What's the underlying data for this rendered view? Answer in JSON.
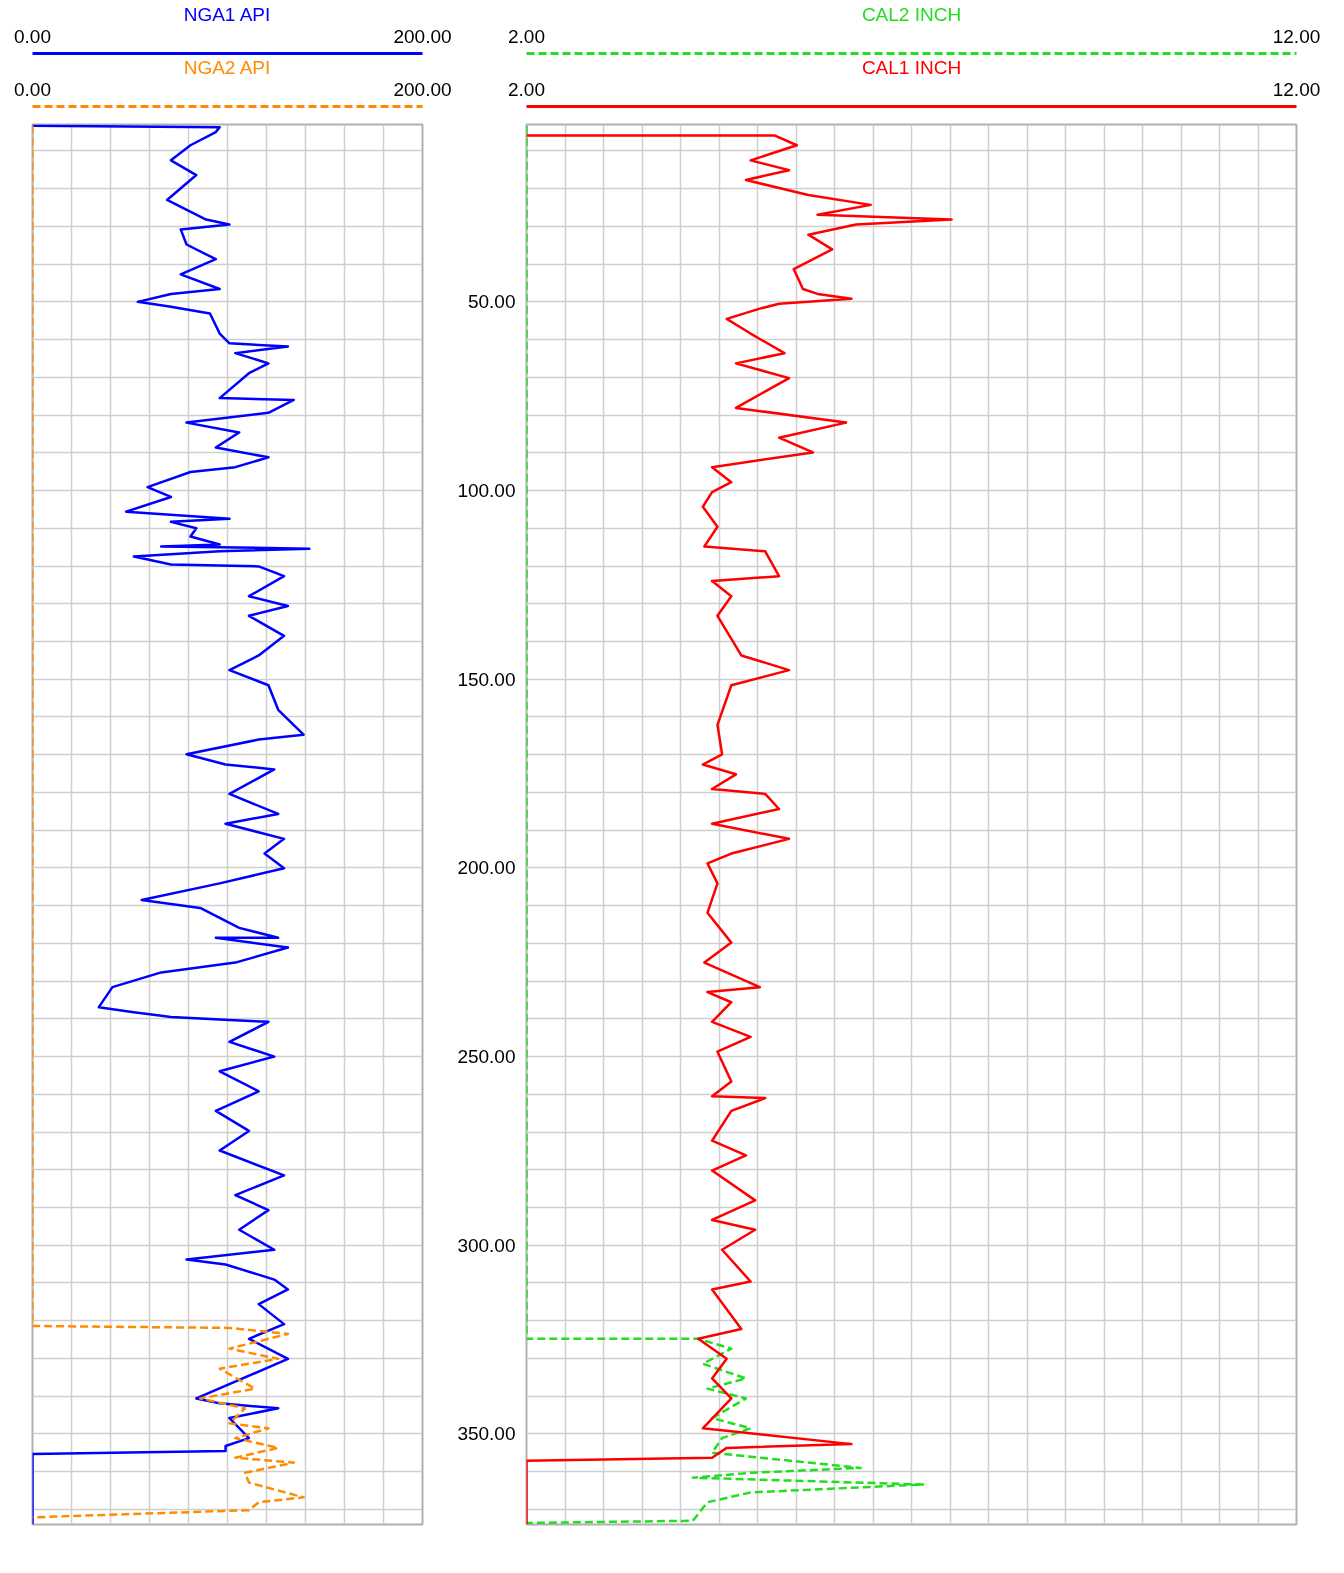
{
  "chart_data": [
    {
      "type": "line",
      "tick_labels": "x",
      "grid": true,
      "xlim": [
        0,
        200
      ],
      "x2lim": [
        0,
        200
      ],
      "ylim": [
        374,
        3
      ],
      "xticks": [
        {
          "value": 0,
          "label": "0.00"
        },
        {
          "value": 20,
          "label": null
        },
        {
          "value": 40,
          "label": null
        },
        {
          "value": 60,
          "label": null
        },
        {
          "value": 80,
          "label": null
        },
        {
          "value": 100,
          "label": null
        },
        {
          "value": 120,
          "label": null
        },
        {
          "value": 140,
          "label": null
        },
        {
          "value": 160,
          "label": null
        },
        {
          "value": 180,
          "label": null
        },
        {
          "value": 200,
          "label": "200.00"
        }
      ],
      "x2ticks": [
        {
          "value": 0,
          "label": "0.00"
        },
        {
          "value": 200,
          "label": "200.00"
        }
      ],
      "yticks": [
        {
          "value": 10,
          "label": null
        },
        {
          "value": 20,
          "label": null
        },
        {
          "value": 30,
          "label": null
        },
        {
          "value": 40,
          "label": null
        },
        {
          "value": 50,
          "label": null
        },
        {
          "value": 60,
          "label": null
        },
        {
          "value": 70,
          "label": null
        },
        {
          "value": 80,
          "label": null
        },
        {
          "value": 90,
          "label": null
        },
        {
          "value": 100,
          "label": null
        },
        {
          "value": 110,
          "label": null
        },
        {
          "value": 120,
          "label": null
        },
        {
          "value": 130,
          "label": null
        },
        {
          "value": 140,
          "label": null
        },
        {
          "value": 150,
          "label": null
        },
        {
          "value": 160,
          "label": null
        },
        {
          "value": 170,
          "label": null
        },
        {
          "value": 180,
          "label": null
        },
        {
          "value": 190,
          "label": null
        },
        {
          "value": 200,
          "label": null
        },
        {
          "value": 210,
          "label": null
        },
        {
          "value": 220,
          "label": null
        },
        {
          "value": 230,
          "label": null
        },
        {
          "value": 240,
          "label": null
        },
        {
          "value": 250,
          "label": null
        },
        {
          "value": 260,
          "label": null
        },
        {
          "value": 270,
          "label": null
        },
        {
          "value": 280,
          "label": null
        },
        {
          "value": 290,
          "label": null
        },
        {
          "value": 300,
          "label": null
        },
        {
          "value": 310,
          "label": null
        },
        {
          "value": 320,
          "label": null
        },
        {
          "value": 330,
          "label": null
        },
        {
          "value": 340,
          "label": null
        },
        {
          "value": 350,
          "label": null
        },
        {
          "value": 360,
          "label": null
        },
        {
          "value": 370,
          "label": null
        }
      ],
      "series": [
        {
          "name": "NGA1 API",
          "color": "#0000ff",
          "axis": "x2",
          "line_style": "solid",
          "x": [
            0,
            96,
            94,
            81,
            71,
            84,
            69,
            89,
            101,
            76,
            79,
            94,
            76,
            96,
            71,
            54,
            71,
            91,
            96,
            101,
            131,
            104,
            121,
            111,
            96,
            134,
            121,
            79,
            106,
            94,
            121,
            104,
            81,
            59,
            71,
            48,
            101,
            71,
            84,
            81,
            96,
            66,
            142,
            96,
            52,
            71,
            116,
            129,
            111,
            131,
            111,
            129,
            116,
            101,
            121,
            126,
            139,
            116,
            79,
            99,
            124,
            101,
            126,
            99,
            129,
            119,
            129,
            96,
            56,
            86,
            106,
            126,
            94,
            131,
            104,
            66,
            41,
            34,
            51,
            71,
            101,
            121,
            101,
            124,
            96,
            116,
            94,
            111,
            96,
            129,
            104,
            121,
            106,
            124,
            79,
            99,
            124,
            131,
            116,
            129,
            111,
            131,
            84,
            96,
            126,
            101,
            111,
            99,
            99,
            0,
            0
          ],
          "values": [
            3.3,
            3.7,
            5,
            8.5,
            12.5,
            16.4,
            23,
            28.2,
            29.5,
            30.8,
            34.8,
            38.7,
            42.7,
            46.6,
            47.9,
            50,
            51.3,
            53.1,
            58.4,
            61,
            61.8,
            63.6,
            66.3,
            68.9,
            75.5,
            76,
            79.4,
            82,
            84.6,
            88.6,
            91.2,
            93.8,
            95.1,
            99.1,
            101.7,
            105.6,
            107.5,
            108.3,
            110,
            112.2,
            114.3,
            114.8,
            115.4,
            116.1,
            117.5,
            119.6,
            120.1,
            122.7,
            128,
            130.6,
            133.2,
            138.5,
            143.7,
            147.6,
            151.6,
            158.1,
            164.7,
            166,
            169.9,
            172.6,
            173.9,
            180.4,
            185.7,
            188.3,
            192.3,
            196.2,
            200.1,
            204.1,
            208.5,
            210.6,
            215.9,
            218.5,
            218.5,
            221.1,
            225.1,
            227.7,
            231.6,
            236.9,
            238.2,
            239.5,
            240.3,
            240.8,
            246.1,
            250,
            253.9,
            259.2,
            264.4,
            269.7,
            274.9,
            281.5,
            286.7,
            290.7,
            295.9,
            301.2,
            303.8,
            305.1,
            309.1,
            311.7,
            315.6,
            320.9,
            324.8,
            330.1,
            340.6,
            341.9,
            343.2,
            345.8,
            351.1,
            353.2,
            354.5,
            355.3,
            374
          ]
        },
        {
          "name": "NGA2 API",
          "color": "#ff8c00",
          "line_style": "dashed",
          "x": [
            0,
            0,
            101,
            131,
            101,
            126,
            96,
            114,
            86,
            109,
            101,
            121,
            104,
            126,
            104,
            134,
            109,
            111,
            139,
            116,
            111,
            0
          ],
          "values": [
            3.3,
            321.4,
            321.9,
            323.5,
            327.4,
            330.1,
            332.7,
            338,
            340.6,
            343.2,
            347.2,
            348.5,
            351.1,
            353.7,
            356.3,
            357.6,
            360.3,
            362.9,
            366.8,
            368.1,
            370.2,
            372.1
          ]
        }
      ]
    },
    {
      "type": "line",
      "grid": true,
      "xlim": [
        2,
        12
      ],
      "x2lim": [
        2,
        12
      ],
      "ylim": [
        374,
        3
      ],
      "xticks": [
        {
          "value": 2,
          "label": "2.00"
        },
        {
          "value": 2.5,
          "label": null
        },
        {
          "value": 3,
          "label": null
        },
        {
          "value": 3.5,
          "label": null
        },
        {
          "value": 4,
          "label": null
        },
        {
          "value": 4.5,
          "label": null
        },
        {
          "value": 5,
          "label": null
        },
        {
          "value": 5.5,
          "label": null
        },
        {
          "value": 6,
          "label": null
        },
        {
          "value": 6.5,
          "label": null
        },
        {
          "value": 7,
          "label": null
        },
        {
          "value": 7.5,
          "label": null
        },
        {
          "value": 8,
          "label": null
        },
        {
          "value": 8.5,
          "label": null
        },
        {
          "value": 9,
          "label": null
        },
        {
          "value": 9.5,
          "label": null
        },
        {
          "value": 10,
          "label": null
        },
        {
          "value": 10.5,
          "label": null
        },
        {
          "value": 11,
          "label": null
        },
        {
          "value": 11.5,
          "label": null
        },
        {
          "value": 12,
          "label": "12.00"
        }
      ],
      "x2ticks": [
        {
          "value": 2,
          "label": "2.00"
        },
        {
          "value": 12,
          "label": "12.00"
        }
      ],
      "yticks": [
        {
          "value": 10,
          "label": null
        },
        {
          "value": 20,
          "label": null
        },
        {
          "value": 30,
          "label": null
        },
        {
          "value": 40,
          "label": null
        },
        {
          "value": 50,
          "label": "50.00"
        },
        {
          "value": 60,
          "label": null
        },
        {
          "value": 70,
          "label": null
        },
        {
          "value": 80,
          "label": null
        },
        {
          "value": 90,
          "label": null
        },
        {
          "value": 100,
          "label": "100.00"
        },
        {
          "value": 110,
          "label": null
        },
        {
          "value": 120,
          "label": null
        },
        {
          "value": 130,
          "label": null
        },
        {
          "value": 140,
          "label": null
        },
        {
          "value": 150,
          "label": "150.00"
        },
        {
          "value": 160,
          "label": null
        },
        {
          "value": 170,
          "label": null
        },
        {
          "value": 180,
          "label": null
        },
        {
          "value": 190,
          "label": null
        },
        {
          "value": 200,
          "label": "200.00"
        },
        {
          "value": 210,
          "label": null
        },
        {
          "value": 220,
          "label": null
        },
        {
          "value": 230,
          "label": null
        },
        {
          "value": 240,
          "label": null
        },
        {
          "value": 250,
          "label": "250.00"
        },
        {
          "value": 260,
          "label": null
        },
        {
          "value": 270,
          "label": null
        },
        {
          "value": 280,
          "label": null
        },
        {
          "value": 290,
          "label": null
        },
        {
          "value": 300,
          "label": "300.00"
        },
        {
          "value": 310,
          "label": null
        },
        {
          "value": 320,
          "label": null
        },
        {
          "value": 330,
          "label": null
        },
        {
          "value": 340,
          "label": null
        },
        {
          "value": 350,
          "label": "350.00"
        },
        {
          "value": 360,
          "label": null
        },
        {
          "value": 370,
          "label": null
        }
      ],
      "series": [
        {
          "name": "CAL2 INCH",
          "color": "#22dd22",
          "axis": "x2",
          "line_style": "dashed",
          "x": [
            2,
            2,
            4.23,
            4.66,
            4.29,
            4.85,
            4.35,
            4.85,
            4.41,
            4.91,
            4.54,
            4.41,
            6.34,
            4.91,
            4.16,
            7.15,
            4.91,
            4.35,
            4.16,
            2
          ],
          "values": [
            3.3,
            324.8,
            324.8,
            327.4,
            331.4,
            335.3,
            338,
            340.6,
            345.8,
            348.5,
            351.1,
            355,
            359,
            360.3,
            361.6,
            363.4,
            365.5,
            368.1,
            373,
            373.6
          ]
        },
        {
          "name": "CAL1 INCH",
          "color": "#ff0000",
          "line_style": "solid",
          "x": [
            2,
            5.22,
            5.51,
            4.91,
            5.41,
            4.85,
            5.66,
            6.47,
            5.78,
            7.52,
            6.28,
            5.66,
            5.97,
            5.47,
            5.59,
            5.78,
            6.22,
            5.28,
            5.03,
            4.6,
            4.91,
            5.35,
            4.72,
            5.41,
            4.72,
            6.15,
            5.28,
            5.72,
            4.41,
            4.66,
            4.41,
            4.29,
            4.48,
            4.31,
            5.1,
            5.28,
            4.41,
            4.66,
            4.48,
            4.79,
            5.41,
            4.66,
            4.48,
            4.54,
            4.29,
            4.72,
            4.41,
            5.1,
            5.28,
            4.41,
            5.41,
            4.66,
            4.35,
            4.48,
            4.35,
            4.66,
            4.31,
            5.03,
            4.35,
            4.66,
            4.41,
            4.91,
            4.48,
            4.66,
            4.41,
            5.1,
            4.66,
            4.41,
            4.85,
            4.41,
            4.97,
            4.41,
            4.97,
            4.54,
            4.91,
            4.41,
            4.79,
            4.23,
            4.6,
            4.41,
            4.66,
            4.29,
            6.22,
            4.6,
            4.41,
            2,
            2
          ],
          "values": [
            5.9,
            5.9,
            8.5,
            12.5,
            15.1,
            17.7,
            21.7,
            24.3,
            26.9,
            28.2,
            29.5,
            32.2,
            36.1,
            41.3,
            46.6,
            47.9,
            49.2,
            50.5,
            51.8,
            54.5,
            58.4,
            63.6,
            66.3,
            70.2,
            78.1,
            82,
            86,
            89.9,
            93.8,
            97.8,
            100.4,
            104.3,
            109.6,
            114.8,
            116.1,
            122.7,
            124,
            128,
            133.2,
            143.7,
            147.6,
            151.6,
            162.1,
            169.9,
            172.6,
            175.2,
            179.1,
            180.4,
            184.4,
            188.3,
            192.3,
            196.2,
            198.8,
            204.1,
            211.9,
            219.8,
            225.1,
            231.6,
            232.9,
            235.6,
            240.8,
            244.8,
            248.7,
            256.6,
            260.5,
            261,
            264.4,
            272.3,
            276.2,
            280.2,
            288.1,
            293.3,
            295.9,
            301.2,
            309.6,
            311.7,
            322.2,
            324.8,
            330.1,
            335.3,
            340.6,
            348.5,
            352.7,
            353.7,
            356.3,
            357.1,
            374
          ]
        }
      ]
    }
  ]
}
